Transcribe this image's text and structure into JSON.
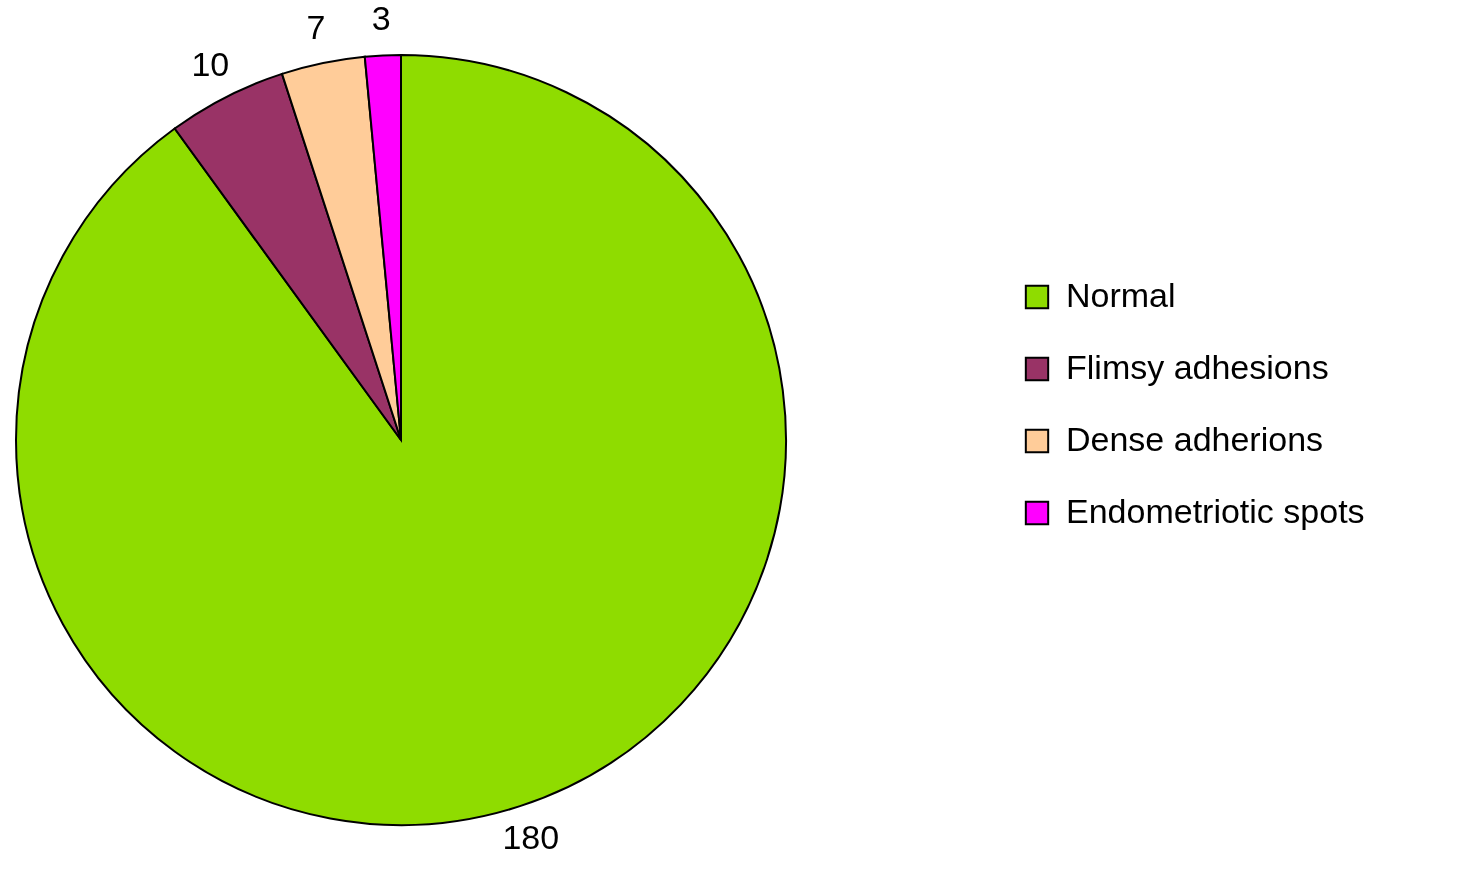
{
  "chart_data": {
    "type": "pie",
    "categories": [
      "Normal",
      "Flimsy adhesions",
      "Dense adherions",
      "Endometriotic spots"
    ],
    "values": [
      180,
      10,
      7,
      3
    ],
    "colors": [
      "#8fdc00",
      "#993366",
      "#ffcc99",
      "#ff00ff"
    ],
    "data_labels": true,
    "legend": "right"
  }
}
